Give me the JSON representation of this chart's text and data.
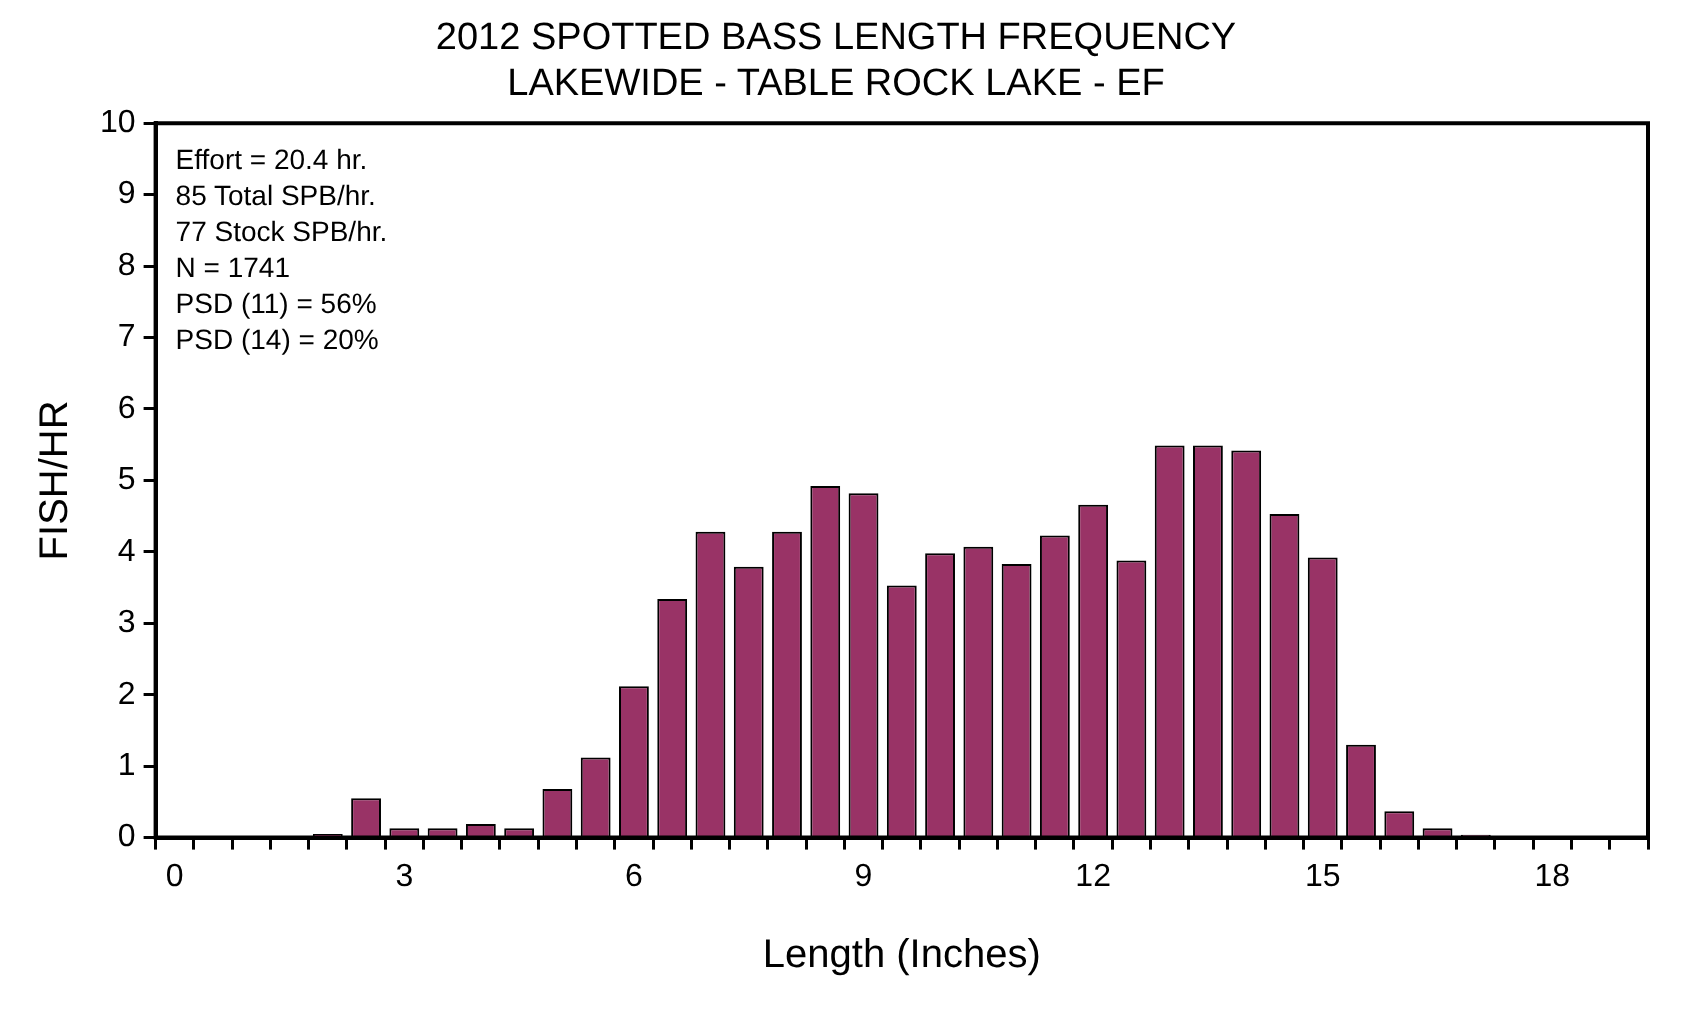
{
  "chart_data": {
    "type": "bar",
    "title": "2012 SPOTTED BASS LENGTH FREQUENCY",
    "subtitle": "LAKEWIDE - TABLE ROCK LAKE - EF",
    "xlabel": "Length (Inches)",
    "ylabel": "FISH/HR",
    "categories": [
      "0",
      null,
      null,
      null,
      null,
      null,
      "3",
      null,
      null,
      null,
      null,
      null,
      "6",
      null,
      null,
      null,
      null,
      null,
      "9",
      null,
      null,
      null,
      null,
      null,
      "12",
      null,
      null,
      null,
      null,
      null,
      "15",
      null,
      null,
      null,
      null,
      null,
      "18",
      null,
      null
    ],
    "values": [
      0,
      0,
      0,
      0,
      0.05,
      0.55,
      0.13,
      0.13,
      0.19,
      0.13,
      0.68,
      1.12,
      2.12,
      3.34,
      4.28,
      3.79,
      4.28,
      4.92,
      4.82,
      3.53,
      3.98,
      4.07,
      3.83,
      4.23,
      4.66,
      3.88,
      5.49,
      5.49,
      5.42,
      4.53,
      3.92,
      1.3,
      0.37,
      0.13,
      0.04,
      0,
      0,
      0,
      0
    ],
    "color": "#993366",
    "ylim": [
      0,
      10
    ],
    "yticks": [
      0,
      1,
      2,
      3,
      4,
      5,
      6,
      7,
      8,
      9,
      10
    ],
    "legend": false,
    "annotations": [
      "Effort = 20.4 hr.",
      "85 Total SPB/hr.",
      "77 Stock SPB/hr.",
      "N = 1741",
      "PSD (11) = 56%",
      "PSD (14) = 20%"
    ]
  }
}
